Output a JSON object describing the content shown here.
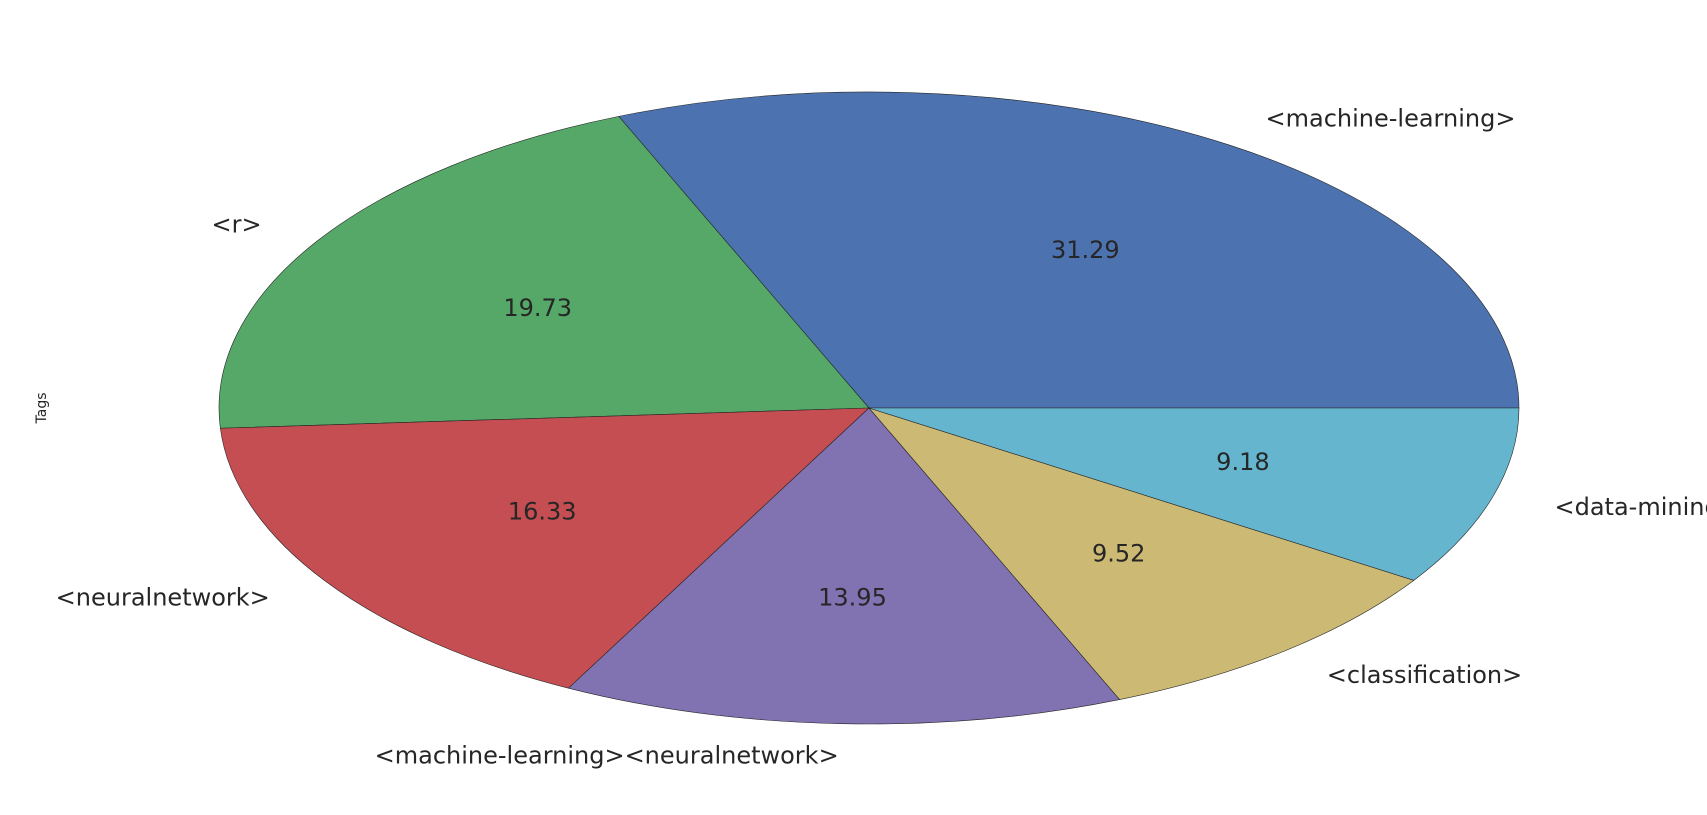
{
  "chart_data": {
    "type": "pie",
    "ylabel": "Tags",
    "start_angle_deg": 0,
    "direction": "counterclockwise",
    "slices": [
      {
        "label": "<machine-learning>",
        "value": 31.29,
        "color": "#4c72b0"
      },
      {
        "label": "<r>",
        "value": 19.73,
        "color": "#55a868"
      },
      {
        "label": "<neuralnetwork>",
        "value": 16.33,
        "color": "#c44e52"
      },
      {
        "label": "<machine-learning><neuralnetwork>",
        "value": 13.95,
        "color": "#8172b2"
      },
      {
        "label": "<classification>",
        "value": 9.52,
        "color": "#ccb974"
      },
      {
        "label": "<data-mining>",
        "value": 9.18,
        "color": "#64b5cd"
      }
    ]
  }
}
